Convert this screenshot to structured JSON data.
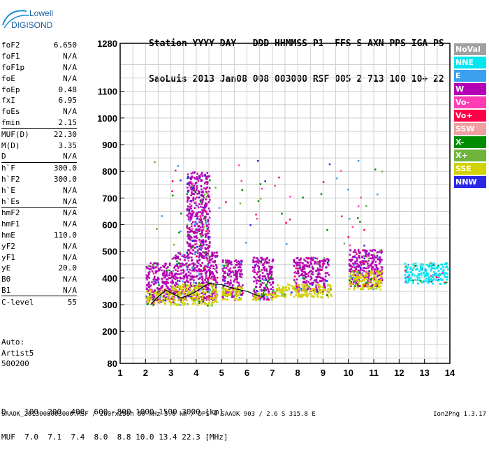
{
  "logo": {
    "line1": "Lowell",
    "line2": "DIGISONDE"
  },
  "header": {
    "labels": [
      "Station",
      "YYYY",
      "DAY",
      "DDD",
      "HHMMSS",
      "P1",
      "FFS",
      "S",
      "AXN",
      "PPS",
      "IGA",
      "PS"
    ],
    "values": [
      "SaoLuis",
      "2013",
      "Jan08",
      "008",
      "003000",
      "RSF",
      "005",
      "2",
      "713",
      "100",
      "10+",
      "22"
    ]
  },
  "params": [
    {
      "k": "foF2",
      "v": "6.650"
    },
    {
      "k": "foF1",
      "v": "N/A"
    },
    {
      "k": "foF1p",
      "v": "N/A"
    },
    {
      "k": "foE",
      "v": "N/A"
    },
    {
      "k": "foEp",
      "v": "0.48"
    },
    {
      "k": "fxI",
      "v": "6.95"
    },
    {
      "k": "foEs",
      "v": "N/A"
    },
    {
      "k": "fmin",
      "v": "2.15"
    },
    {
      "k": "MUF(D)",
      "v": "22.30",
      "sep": true
    },
    {
      "k": "M(D)",
      "v": "3.35"
    },
    {
      "k": "D",
      "v": "N/A"
    },
    {
      "k": "h`F",
      "v": "300.0",
      "sep": true
    },
    {
      "k": "h`F2",
      "v": "300.0"
    },
    {
      "k": "h`E",
      "v": "N/A"
    },
    {
      "k": "h`Es",
      "v": "N/A"
    },
    {
      "k": "hmF2",
      "v": "N/A",
      "sep": true
    },
    {
      "k": "hmF1",
      "v": "N/A"
    },
    {
      "k": "hmE",
      "v": "110.0"
    },
    {
      "k": "yF2",
      "v": "N/A"
    },
    {
      "k": "yF1",
      "v": "N/A"
    },
    {
      "k": "yE",
      "v": "20.0"
    },
    {
      "k": "B0",
      "v": "N/A"
    },
    {
      "k": "B1",
      "v": "N/A"
    },
    {
      "k": "C-level",
      "v": "55",
      "sep": true
    }
  ],
  "autoscaling": {
    "line1": "Auto:",
    "line2": "Artist5",
    "line3": "500200"
  },
  "dmuf": {
    "d_label": "D",
    "d_values": "100  200  400  600  800 1000 1500 3000 [km]",
    "muf_label": "MUF",
    "muf_values": "7.0  7.1  7.4  8.0  8.8 10.0 13.4 22.3 [MHz]"
  },
  "footer": {
    "left": "SAAOK_2013008003000.RSF / 260fx256h 50 kHz 5.0 km / DPS-4 SAAOK 903 / 2.6 S 315.8 E",
    "right": "Ion2Png 1.3.17"
  },
  "legend": [
    {
      "label": "NoVal",
      "color": "#a0a0a0"
    },
    {
      "label": "NNE",
      "color": "#00e6f0"
    },
    {
      "label": "E",
      "color": "#3ca0f0"
    },
    {
      "label": "W",
      "color": "#b400b4"
    },
    {
      "label": "Vo-",
      "color": "#ff3cb4"
    },
    {
      "label": "Vo+",
      "color": "#ff0046"
    },
    {
      "label": "SSW",
      "color": "#f0a0a0"
    },
    {
      "label": "X-",
      "color": "#008c00"
    },
    {
      "label": "X+",
      "color": "#6eb43c"
    },
    {
      "label": "SSE",
      "color": "#d2d200"
    },
    {
      "label": "NNW",
      "color": "#2828e6"
    }
  ],
  "chart_data": {
    "type": "scatter",
    "title": "",
    "xlabel": "",
    "ylabel": "",
    "xlim": [
      1,
      14
    ],
    "ylim": [
      80,
      1280
    ],
    "x_ticks": [
      1,
      2,
      3,
      4,
      5,
      6,
      7,
      8,
      9,
      10,
      11,
      12,
      13,
      14
    ],
    "y_ticks": [
      80,
      200,
      300,
      400,
      500,
      600,
      700,
      800,
      900,
      1000,
      1100,
      1280
    ],
    "grid": true,
    "legend_position": "right",
    "clusters": [
      {
        "x": [
          2.0,
          3.0
        ],
        "y": [
          310,
          460
        ],
        "color": "#b400b4"
      },
      {
        "x": [
          2.0,
          3.0
        ],
        "y": [
          300,
          360
        ],
        "color": "#d2d200"
      },
      {
        "x": [
          3.0,
          4.8
        ],
        "y": [
          320,
          500
        ],
        "color": "#b400b4"
      },
      {
        "x": [
          3.0,
          4.8
        ],
        "y": [
          300,
          380
        ],
        "color": "#d2d200"
      },
      {
        "x": [
          3.6,
          4.5
        ],
        "y": [
          500,
          800
        ],
        "color": "#b400b4"
      },
      {
        "x": [
          5.0,
          5.8
        ],
        "y": [
          330,
          470
        ],
        "color": "#b400b4"
      },
      {
        "x": [
          5.0,
          5.8
        ],
        "y": [
          320,
          370
        ],
        "color": "#d2d200"
      },
      {
        "x": [
          6.2,
          7.0
        ],
        "y": [
          320,
          480
        ],
        "color": "#b400b4"
      },
      {
        "x": [
          6.2,
          7.0
        ],
        "y": [
          320,
          345
        ],
        "color": "#d2d200"
      },
      {
        "x": [
          7.8,
          9.2
        ],
        "y": [
          350,
          480
        ],
        "color": "#b400b4"
      },
      {
        "x": [
          7.0,
          9.3
        ],
        "y": [
          330,
          380
        ],
        "color": "#d2d200"
      },
      {
        "x": [
          10.0,
          11.3
        ],
        "y": [
          370,
          510
        ],
        "color": "#b400b4"
      },
      {
        "x": [
          10.0,
          11.3
        ],
        "y": [
          360,
          430
        ],
        "color": "#d2d200"
      },
      {
        "x": [
          12.2,
          13.9
        ],
        "y": [
          380,
          460
        ],
        "color": "#00e6f0"
      }
    ],
    "trace": {
      "x": [
        2.2,
        2.5,
        2.8,
        3.1,
        3.4,
        3.7,
        4.0,
        4.5,
        5.0,
        5.5,
        6.0,
        6.4,
        6.65
      ],
      "y": [
        300,
        330,
        355,
        340,
        325,
        335,
        350,
        380,
        375,
        360,
        350,
        335,
        330
      ],
      "color": "#000000"
    },
    "trace2": {
      "x": [
        6.6,
        6.8,
        7.0
      ],
      "y": [
        330,
        380,
        415
      ],
      "color": "#008c00"
    }
  }
}
